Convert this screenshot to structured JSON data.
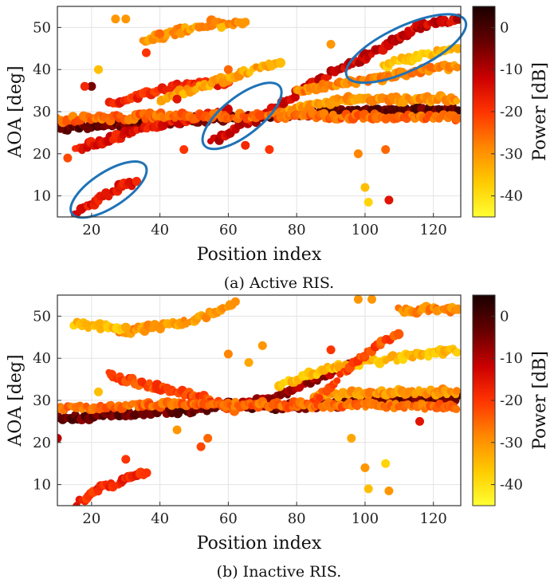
{
  "figure": {
    "captions": [
      "(a) Active RIS.",
      "(b) Inactive RIS."
    ]
  },
  "colormap": {
    "name": "hot (reversed)",
    "stops": [
      "#ffff33",
      "#ffcc00",
      "#ff8800",
      "#ff3300",
      "#cc0000",
      "#660000",
      "#1a0000"
    ]
  },
  "chart_data": [
    {
      "type": "scatter",
      "title": "",
      "xlabel": "Position index",
      "ylabel": "AOA [deg]",
      "colorbar_label": "Power [dB]",
      "xlim": [
        10,
        128
      ],
      "ylim": [
        5,
        55
      ],
      "clim": [
        -45,
        5
      ],
      "xticks": [
        20,
        40,
        60,
        80,
        100,
        120
      ],
      "yticks": [
        10,
        20,
        30,
        40,
        50
      ],
      "cticks": [
        0,
        -10,
        -20,
        -30,
        -40
      ],
      "grid": true,
      "highlight_ellipses": [
        {
          "center": [
            25,
            11.5
          ],
          "note": "lower-left cluster"
        },
        {
          "center": [
            64,
            29
          ],
          "note": "middle cluster"
        },
        {
          "center": [
            112,
            45
          ],
          "note": "upper-right cluster"
        }
      ],
      "tracks": [
        {
          "x": [
            10,
            30,
            50,
            70,
            90,
            110,
            127
          ],
          "y": [
            26,
            27,
            28,
            29,
            30,
            30.5,
            30.5
          ],
          "power_db": -3
        },
        {
          "x": [
            55,
            70,
            85,
            100,
            115,
            127
          ],
          "y": [
            23,
            29,
            37,
            43,
            50,
            52
          ],
          "power_db": -12
        },
        {
          "x": [
            15,
            22,
            28,
            33
          ],
          "y": [
            6,
            9,
            12,
            13
          ],
          "power_db": -15
        },
        {
          "x": [
            15,
            40,
            60
          ],
          "y": [
            21,
            27,
            30
          ],
          "power_db": -15
        },
        {
          "x": [
            25,
            45,
            60
          ],
          "y": [
            32,
            36,
            37
          ],
          "power_db": -18
        },
        {
          "x": [
            75,
            95,
            127
          ],
          "y": [
            30,
            33,
            33
          ],
          "power_db": -30
        },
        {
          "x": [
            40,
            60,
            75
          ],
          "y": [
            33,
            38,
            42
          ],
          "power_db": -32
        },
        {
          "x": [
            80,
            105,
            127
          ],
          "y": [
            35,
            38,
            41
          ],
          "power_db": -28
        },
        {
          "x": [
            105,
            115,
            127
          ],
          "y": [
            41,
            43,
            45
          ],
          "power_db": -35
        },
        {
          "x": [
            35,
            45,
            55,
            65
          ],
          "y": [
            47,
            49,
            51,
            51
          ],
          "power_db": -30
        },
        {
          "x": [
            10,
            40,
            80,
            127
          ],
          "y": [
            28,
            29,
            29,
            28.5
          ],
          "power_db": -25
        }
      ],
      "scatter_points": [
        {
          "x": 27,
          "y": 52,
          "p": -30
        },
        {
          "x": 30,
          "y": 52,
          "p": -30
        },
        {
          "x": 40,
          "y": 48.5,
          "p": -25
        },
        {
          "x": 58,
          "y": 50,
          "p": -35
        },
        {
          "x": 20,
          "y": 36,
          "p": -5
        },
        {
          "x": 36,
          "y": 44,
          "p": -20
        },
        {
          "x": 100,
          "y": 12,
          "p": -35
        },
        {
          "x": 101,
          "y": 8.5,
          "p": -38
        },
        {
          "x": 107,
          "y": 9,
          "p": -15
        },
        {
          "x": 106,
          "y": 21,
          "p": -25
        },
        {
          "x": 98,
          "y": 20,
          "p": -28
        },
        {
          "x": 47,
          "y": 21,
          "p": -20
        },
        {
          "x": 13,
          "y": 19,
          "p": -22
        },
        {
          "x": 18,
          "y": 36,
          "p": -18
        },
        {
          "x": 65,
          "y": 22,
          "p": -18
        },
        {
          "x": 72,
          "y": 21,
          "p": -20
        },
        {
          "x": 22,
          "y": 40,
          "p": -35
        },
        {
          "x": 45,
          "y": 33,
          "p": -15
        },
        {
          "x": 90,
          "y": 46,
          "p": -30
        },
        {
          "x": 60,
          "y": 40,
          "p": -25
        }
      ]
    },
    {
      "type": "scatter",
      "title": "",
      "xlabel": "Position index",
      "ylabel": "AOA [deg]",
      "colorbar_label": "Power [dB]",
      "xlim": [
        10,
        128
      ],
      "ylim": [
        5,
        55
      ],
      "clim": [
        -45,
        5
      ],
      "xticks": [
        20,
        40,
        60,
        80,
        100,
        120
      ],
      "yticks": [
        10,
        20,
        30,
        40,
        50
      ],
      "cticks": [
        0,
        -10,
        -20,
        -30,
        -40
      ],
      "grid": true,
      "tracks": [
        {
          "x": [
            10,
            30,
            50,
            60,
            70,
            80,
            100,
            127
          ],
          "y": [
            25.5,
            27,
            27.5,
            29,
            28.5,
            28.5,
            29.5,
            30.5
          ],
          "power_db": -3
        },
        {
          "x": [
            60,
            75,
            86,
            96
          ],
          "y": [
            28,
            31,
            35,
            39
          ],
          "power_db": -8
        },
        {
          "x": [
            15,
            22,
            30,
            36
          ],
          "y": [
            5,
            9,
            11,
            13
          ],
          "power_db": -18
        },
        {
          "x": [
            25,
            40,
            55,
            62
          ],
          "y": [
            36,
            33,
            30,
            28
          ],
          "power_db": -22
        },
        {
          "x": [
            28,
            50,
            62
          ],
          "y": [
            46,
            49,
            53
          ],
          "power_db": -30
        },
        {
          "x": [
            15,
            30
          ],
          "y": [
            48,
            47
          ],
          "power_db": -35
        },
        {
          "x": [
            75,
            92,
            127
          ],
          "y": [
            34,
            38,
            42
          ],
          "power_db": -35
        },
        {
          "x": [
            85,
            110,
            127
          ],
          "y": [
            31,
            32,
            32
          ],
          "power_db": -30
        },
        {
          "x": [
            85,
            100,
            110
          ],
          "y": [
            30,
            41,
            46
          ],
          "power_db": -22
        },
        {
          "x": [
            110,
            127
          ],
          "y": [
            51.5,
            51.5
          ],
          "power_db": -28
        },
        {
          "x": [
            10,
            40,
            80,
            127
          ],
          "y": [
            28,
            29,
            29,
            28.5
          ],
          "power_db": -25
        }
      ],
      "scatter_points": [
        {
          "x": 98,
          "y": 54,
          "p": -30
        },
        {
          "x": 102,
          "y": 54,
          "p": -30
        },
        {
          "x": 96,
          "y": 21,
          "p": -32
        },
        {
          "x": 100,
          "y": 14,
          "p": -30
        },
        {
          "x": 101,
          "y": 9,
          "p": -35
        },
        {
          "x": 106,
          "y": 15,
          "p": -38
        },
        {
          "x": 107,
          "y": 8.5,
          "p": -30
        },
        {
          "x": 10,
          "y": 21,
          "p": -10
        },
        {
          "x": 54,
          "y": 21,
          "p": -25
        },
        {
          "x": 52,
          "y": 19,
          "p": -22
        },
        {
          "x": 60,
          "y": 41,
          "p": -28
        },
        {
          "x": 66,
          "y": 39,
          "p": -32
        },
        {
          "x": 90,
          "y": 42,
          "p": -20
        },
        {
          "x": 22,
          "y": 32,
          "p": -35
        },
        {
          "x": 45,
          "y": 23,
          "p": -30
        },
        {
          "x": 116,
          "y": 25,
          "p": -15
        },
        {
          "x": 30,
          "y": 16,
          "p": -20
        },
        {
          "x": 70,
          "y": 43,
          "p": -30
        }
      ]
    }
  ]
}
